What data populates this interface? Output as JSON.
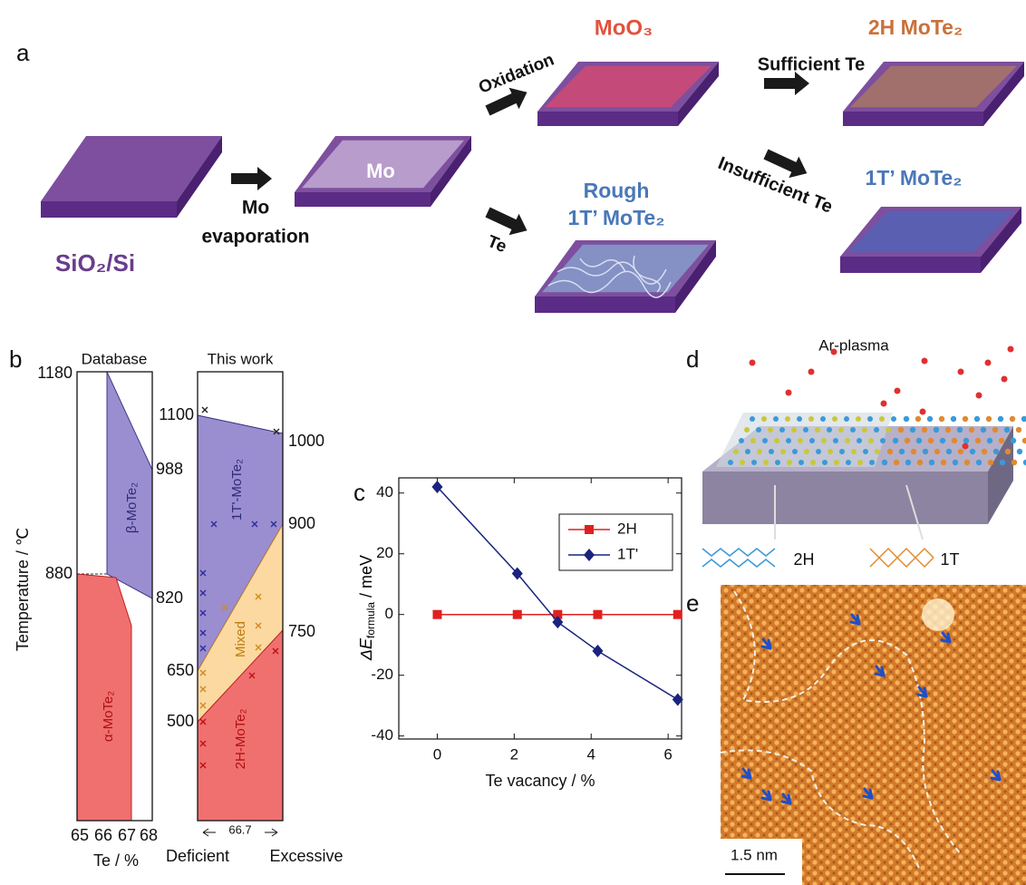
{
  "panel_a": {
    "label": "a",
    "substrate": "SiO₂/Si",
    "mo_layer": "Mo",
    "step_evaporation": [
      "Mo",
      "evaporation"
    ],
    "step_oxidation": "Oxidation",
    "step_te": "Te",
    "oxide": "MoO₃",
    "rough": [
      "Rough",
      "1T’ MoTe₂"
    ],
    "step_sufficient": "Sufficient  Te",
    "step_insufficient": "Insufficient Te",
    "product_2h": "2H MoTe₂",
    "product_1t": "1T’ MoTe₂"
  },
  "panel_b": {
    "label": "b",
    "database": {
      "title": "Database",
      "temps": [
        1180,
        880,
        988,
        820
      ],
      "x_ticks": [
        65,
        66,
        67,
        68
      ],
      "x_label": "Te / %",
      "y_label": "Temperature / ℃",
      "beta": "β-MoTe₂",
      "alpha": "α-MoTe₂"
    },
    "this_work": {
      "title": "This work",
      "temps": [
        1100,
        1000,
        900,
        750,
        650,
        500
      ],
      "phase_1t": "1T'-MoTe₂",
      "mixed": "Mixed",
      "phase_2h": "2H-MoTe₂",
      "stoichiometry": 66.7,
      "deficient": "Deficient",
      "excessive": "Excessive"
    }
  },
  "panel_c": {
    "label": "c",
    "chart_data": {
      "type": "line",
      "x": [
        0,
        2.08,
        3.13,
        4.17,
        6.25
      ],
      "series": [
        {
          "name": "2H",
          "color": "#e02020",
          "marker": "square",
          "values": [
            0,
            0,
            0,
            0,
            0
          ]
        },
        {
          "name": "1T'",
          "color": "#1a237e",
          "marker": "diamond",
          "values": [
            42,
            13.5,
            -2.5,
            -12,
            -28
          ]
        }
      ],
      "xlim": [
        -1,
        6.35
      ],
      "ylim": [
        -41,
        45
      ],
      "xticks": [
        0,
        2,
        4,
        6
      ],
      "yticks": [
        -40,
        -20,
        0,
        20,
        40
      ],
      "x_label": "Te vacancy / %",
      "y_label": {
        "symbol": "ΔE",
        "subscript": "formula",
        "unit": " / meV"
      },
      "legend": "upper right"
    }
  },
  "panel_d": {
    "label": "d",
    "source": "Ar-plasma",
    "left_phase": "2H",
    "right_phase": "1T"
  },
  "panel_e": {
    "label": "e",
    "scale_bar": "1.5 nm"
  }
}
